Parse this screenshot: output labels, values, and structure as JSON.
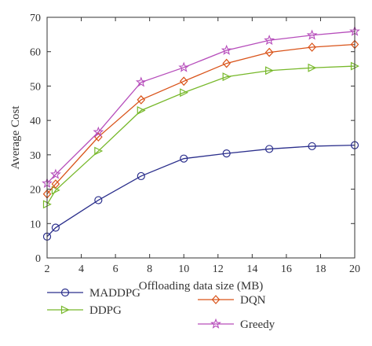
{
  "chart_data": {
    "type": "line",
    "xlabel": "Offloading data size (MB)",
    "ylabel": "Average Cost",
    "xlim": [
      2,
      20
    ],
    "ylim": [
      0,
      70
    ],
    "xticks": [
      2,
      4,
      6,
      8,
      10,
      12,
      14,
      16,
      18,
      20
    ],
    "yticks": [
      0,
      10,
      20,
      30,
      40,
      50,
      60,
      70
    ],
    "x": [
      2,
      2.5,
      5,
      7.5,
      10,
      12.5,
      15,
      17.5,
      20
    ],
    "grid": false,
    "legend_position": "bottom",
    "series": [
      {
        "name": "MADDPG",
        "marker": "circle",
        "color": "#2b2f8c",
        "values": [
          6.2,
          8.8,
          16.8,
          23.8,
          28.9,
          30.4,
          31.7,
          32.5,
          32.8
        ]
      },
      {
        "name": "DDPG",
        "marker": "triangle-right",
        "color": "#77b82a",
        "values": [
          15.6,
          19.7,
          31.1,
          42.9,
          48.1,
          52.7,
          54.5,
          55.3,
          55.8
        ]
      },
      {
        "name": "DQN",
        "marker": "diamond",
        "color": "#d95319",
        "values": [
          18.6,
          21.5,
          35.2,
          46.0,
          51.4,
          56.6,
          59.8,
          61.3,
          62.1
        ]
      },
      {
        "name": "Greedy",
        "marker": "star",
        "color": "#b64dbb",
        "values": [
          21.7,
          24.3,
          36.6,
          51.1,
          55.4,
          60.4,
          63.3,
          64.8,
          65.9
        ]
      }
    ]
  }
}
